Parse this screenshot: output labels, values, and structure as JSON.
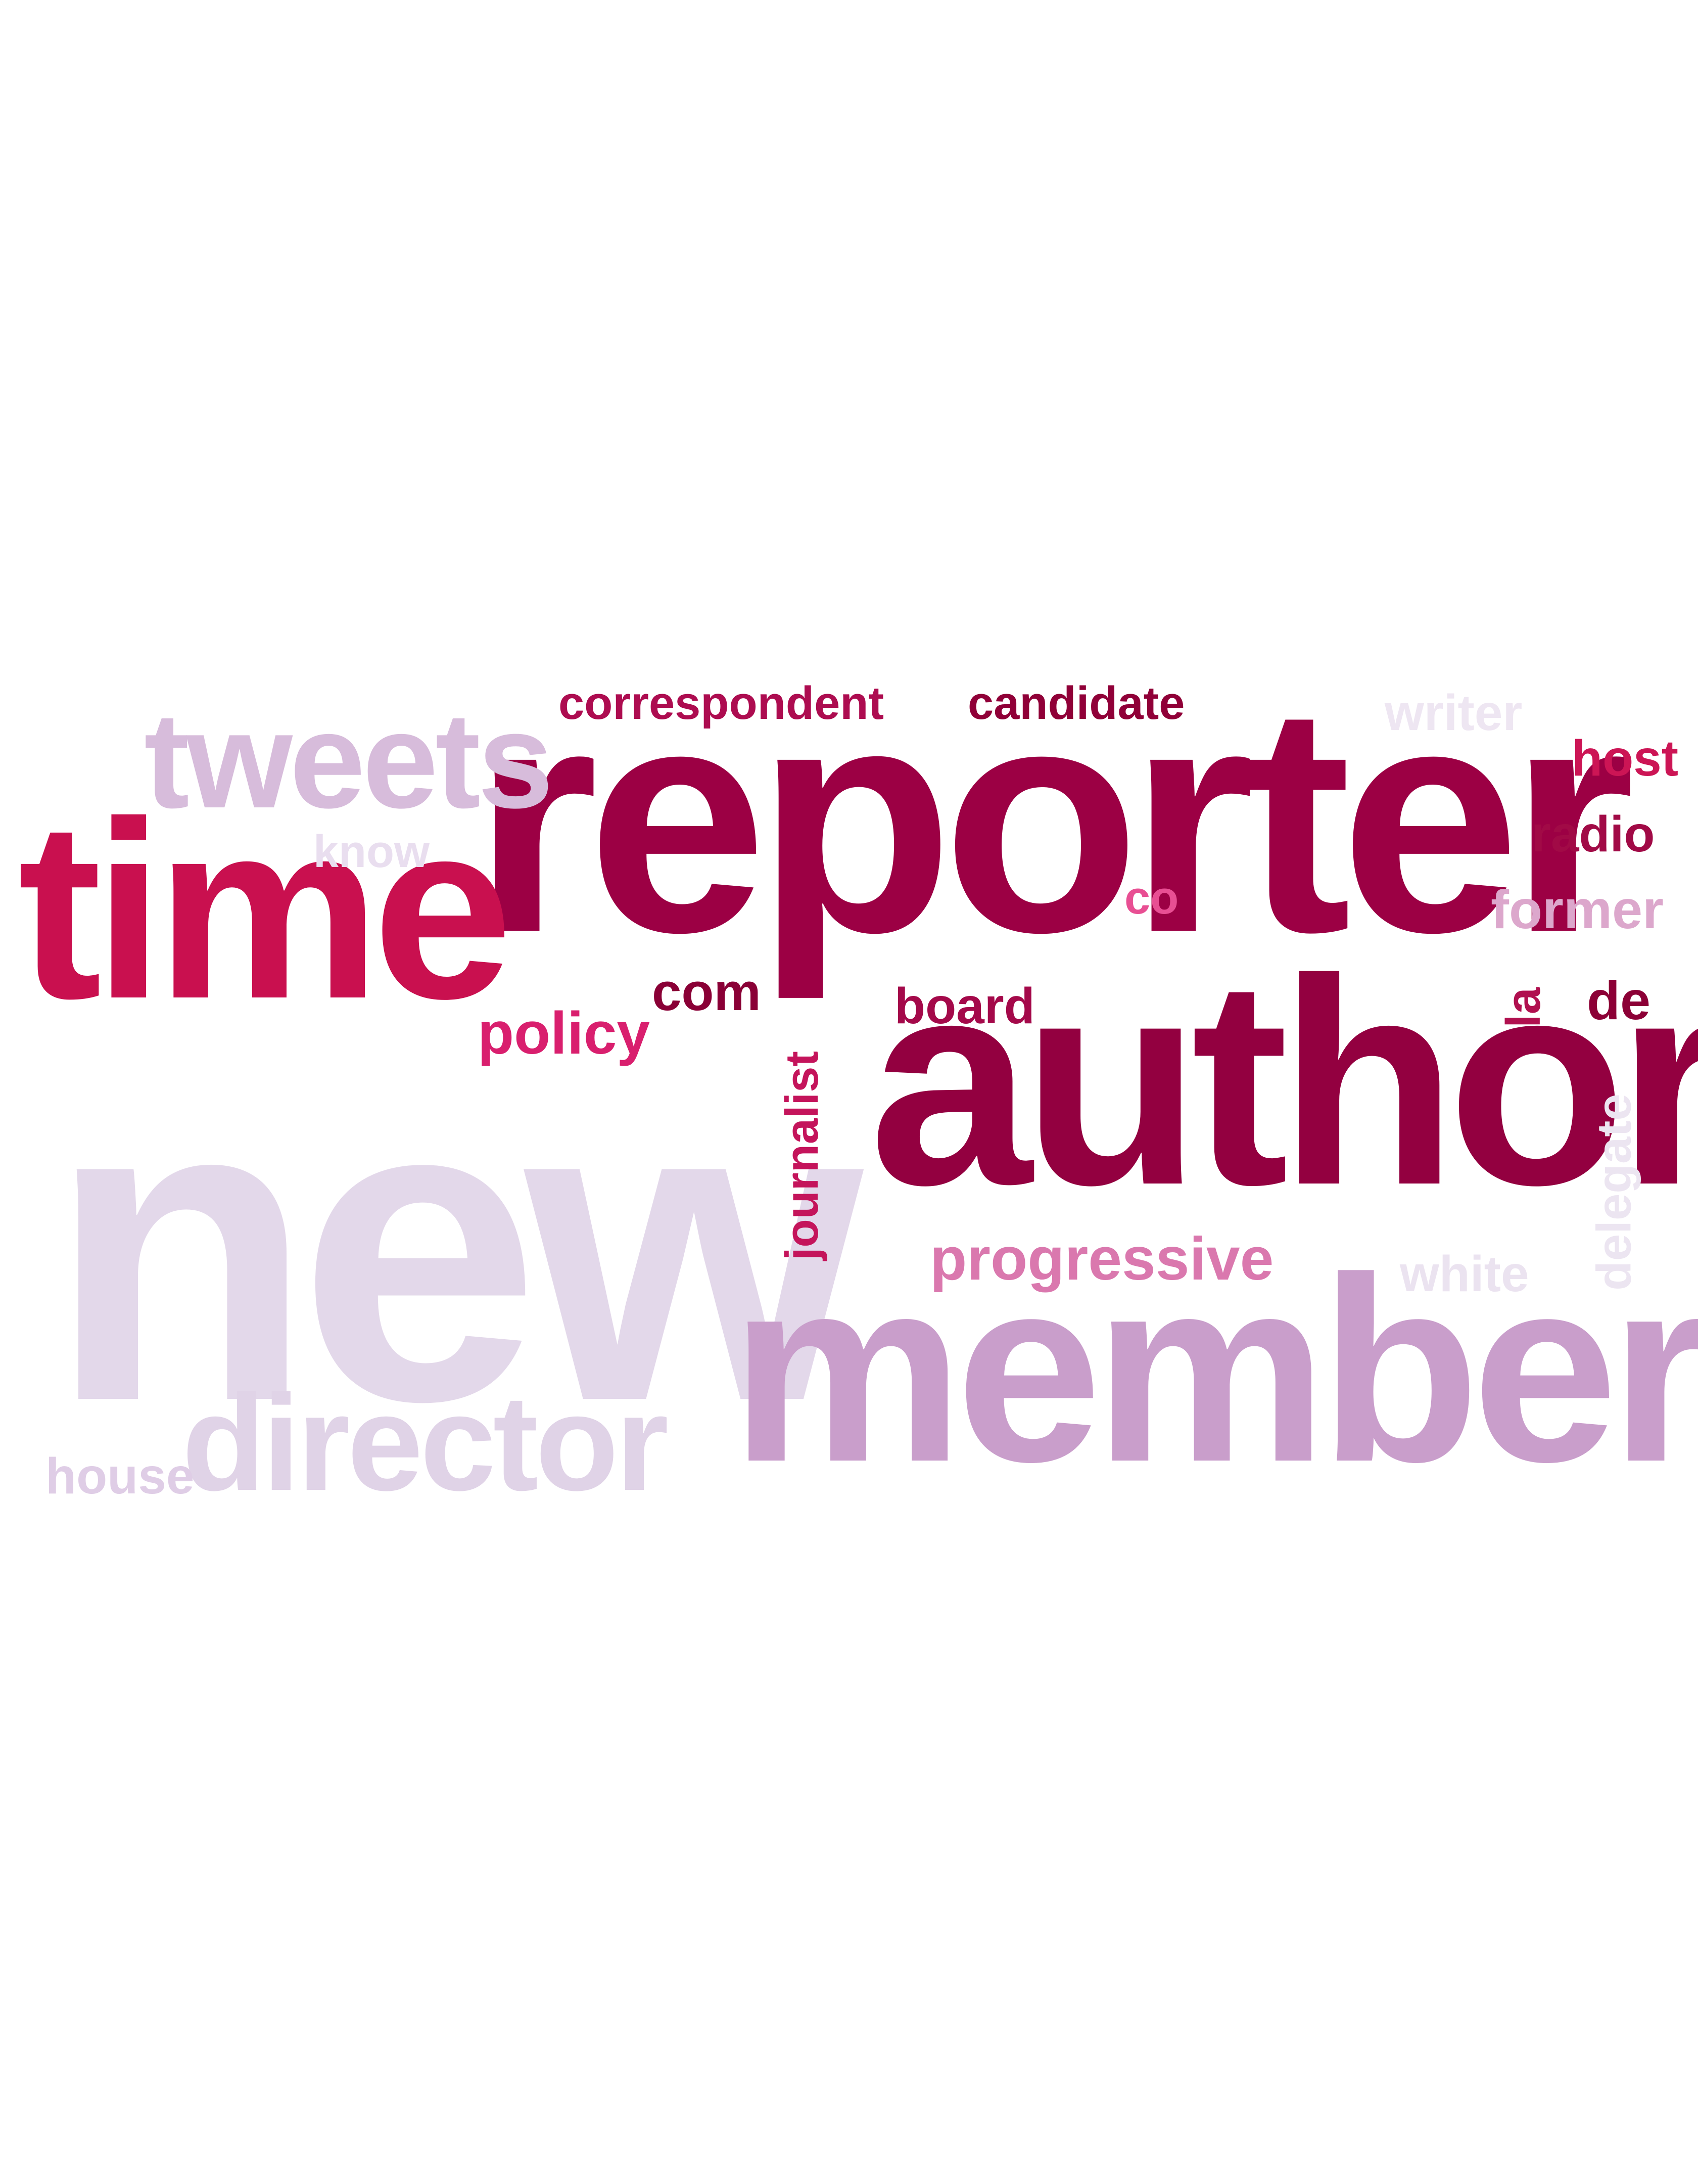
{
  "colors": {
    "background": "#ffffff",
    "darkest": "#9c0044",
    "crimson": "#c9104f",
    "pink": "#e0569a",
    "mauve": "#c99ecb",
    "lavender": "#dccde6",
    "pale": "#ece5f1"
  },
  "words": {
    "new": "new",
    "reporter": "reporter",
    "author": "author",
    "member": "member",
    "time": "time",
    "tweets": "tweets",
    "director": "director",
    "correspondent": "correspondent",
    "candidate": "candidate",
    "writer": "writer",
    "host": "host",
    "radio": "radio",
    "former": "former",
    "know": "know",
    "co": "co",
    "com": "com",
    "board": "board",
    "policy": "policy",
    "la": "la",
    "de": "de",
    "journalist": "journalist",
    "delegate": "delegate",
    "progressive": "progressive",
    "white": "white",
    "house": "house"
  }
}
